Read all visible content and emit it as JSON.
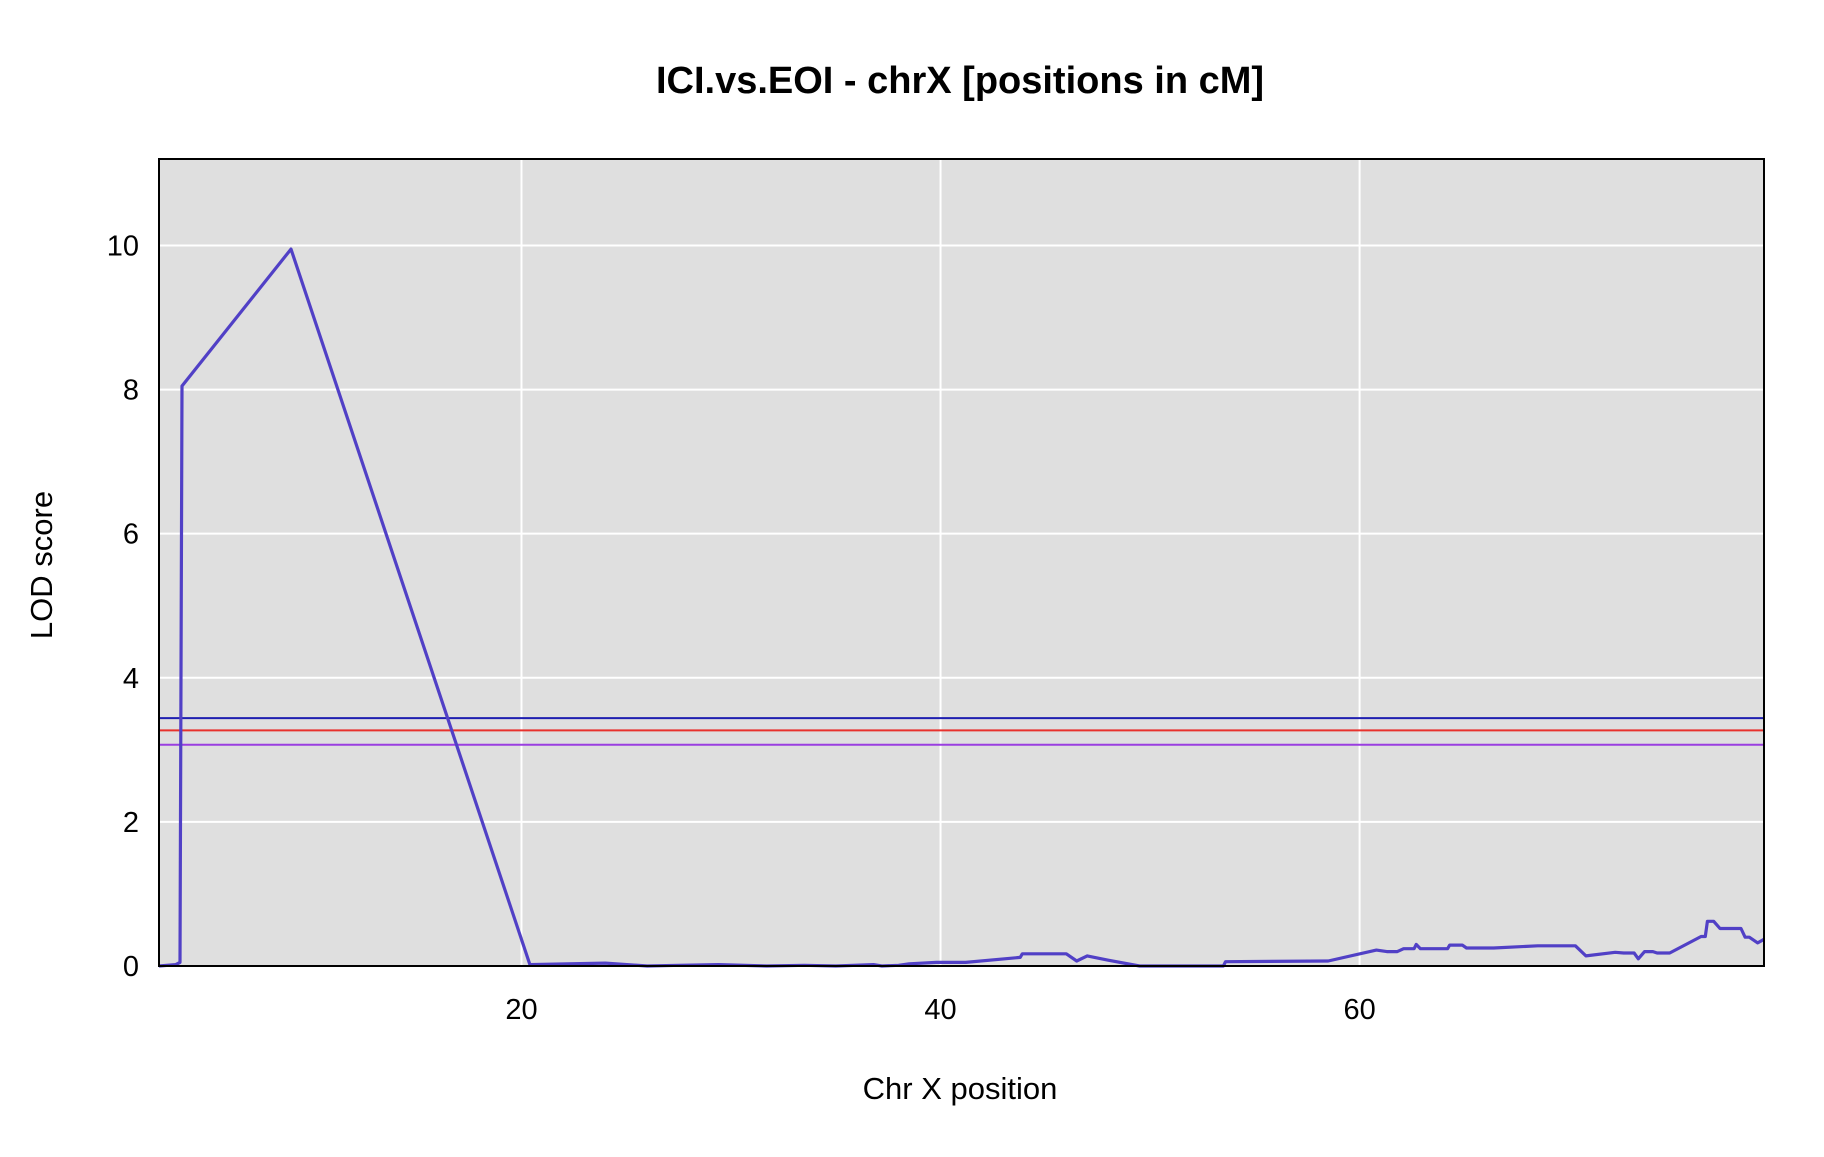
{
  "chart_data": {
    "type": "line",
    "title": "ICI.vs.EOI - chrX [positions in cM]",
    "xlabel": "Chr X position",
    "ylabel": "LOD score",
    "xlim": [
      2.7,
      79.3
    ],
    "ylim": [
      0,
      11.2
    ],
    "xticks": [
      20,
      40,
      60
    ],
    "yticks": [
      0,
      2,
      4,
      6,
      8,
      10
    ],
    "grid": true,
    "legend": "none",
    "plot_background": "#dfdfdf",
    "grid_color": "#ffffff",
    "series": [
      {
        "color": "#5140c6",
        "x": [
          2.7,
          3.5,
          3.7,
          3.8,
          9.0,
          20.4,
          24.0,
          26.0,
          27.5,
          29.4,
          31.7,
          33.5,
          35.0,
          36.8,
          37.2,
          38.0,
          38.5,
          39.8,
          41.2,
          43.8,
          43.9,
          46.0,
          46.5,
          47.0,
          48.0,
          49.5,
          53.5,
          53.6,
          58.5,
          60.8,
          61.3,
          61.8,
          62.1,
          62.6,
          62.7,
          62.9,
          64.2,
          64.3,
          64.9,
          65.1,
          66.4,
          68.5,
          70.3,
          70.8,
          72.2,
          72.6,
          73.1,
          73.3,
          73.6,
          74.0,
          74.2,
          74.8,
          76.3,
          76.5,
          76.6,
          76.9,
          77.2,
          78.2,
          78.4,
          78.6,
          79.0,
          79.3
        ],
        "y": [
          0.0,
          0.02,
          0.05,
          8.05,
          9.95,
          0.02,
          0.04,
          0.0,
          0.01,
          0.02,
          0.0,
          0.01,
          0.0,
          0.02,
          0.0,
          0.01,
          0.03,
          0.05,
          0.05,
          0.12,
          0.17,
          0.17,
          0.07,
          0.14,
          0.08,
          0.0,
          0.0,
          0.06,
          0.07,
          0.22,
          0.2,
          0.2,
          0.24,
          0.24,
          0.3,
          0.24,
          0.24,
          0.29,
          0.29,
          0.25,
          0.25,
          0.28,
          0.28,
          0.14,
          0.19,
          0.18,
          0.18,
          0.1,
          0.2,
          0.2,
          0.18,
          0.18,
          0.41,
          0.41,
          0.62,
          0.62,
          0.52,
          0.52,
          0.4,
          0.4,
          0.32,
          0.37
        ]
      }
    ],
    "thresholds": [
      {
        "value": 3.44,
        "color": "#1f1fb0"
      },
      {
        "value": 3.27,
        "color": "#e8322d"
      },
      {
        "value": 3.07,
        "color": "#9a3ee0"
      }
    ]
  }
}
